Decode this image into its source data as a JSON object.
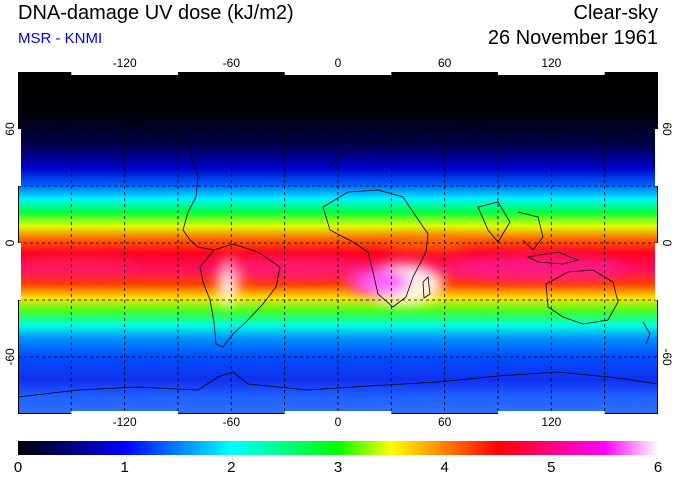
{
  "header": {
    "title": "DNA-damage UV dose (kJ/m2)",
    "subtitle": "MSR - KNMI",
    "condition": "Clear-sky",
    "date": "26 November 1961"
  },
  "map": {
    "projection": "equirectangular",
    "lon_range": [
      -180,
      180
    ],
    "lat_range": [
      -90,
      90
    ],
    "grid_spacing_lon": 30,
    "grid_spacing_lat": 30,
    "lon_tick_labels": [
      "-120",
      "-60",
      "0",
      "60",
      "120"
    ],
    "lon_tick_values": [
      -120,
      -60,
      0,
      60,
      120
    ],
    "lat_tick_labels": [
      "60",
      "0",
      "-60"
    ],
    "lat_tick_values": [
      60,
      0,
      -60
    ],
    "colors": {
      "gridlines": "#000000",
      "coastlines": "#000000",
      "frame": "#000000"
    }
  },
  "colorbar": {
    "min": 0,
    "max": 6,
    "tick_labels": [
      "0",
      "1",
      "2",
      "3",
      "4",
      "5",
      "6"
    ],
    "tick_values": [
      0,
      1,
      2,
      3,
      4,
      5,
      6
    ],
    "colormap_stops": [
      {
        "value": 0.0,
        "color": "#000000"
      },
      {
        "value": 0.5,
        "color": "#000080"
      },
      {
        "value": 1.0,
        "color": "#0000ff"
      },
      {
        "value": 1.5,
        "color": "#0080ff"
      },
      {
        "value": 2.0,
        "color": "#00ffff"
      },
      {
        "value": 2.5,
        "color": "#00ff80"
      },
      {
        "value": 3.0,
        "color": "#00ff00"
      },
      {
        "value": 3.5,
        "color": "#ffff00"
      },
      {
        "value": 4.0,
        "color": "#ff8000"
      },
      {
        "value": 4.5,
        "color": "#ff0000"
      },
      {
        "value": 5.0,
        "color": "#ff0080"
      },
      {
        "value": 5.5,
        "color": "#ff00ff"
      },
      {
        "value": 6.0,
        "color": "#ffffff"
      }
    ]
  }
}
